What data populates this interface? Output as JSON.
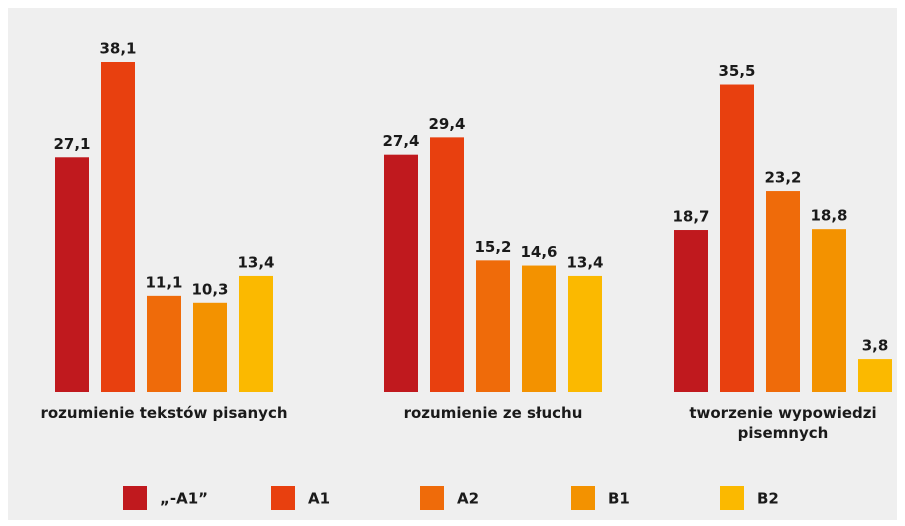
{
  "chart_data": {
    "type": "bar",
    "categories": [
      "rozumienie tekstów pisanych",
      "rozumienie ze słuchu",
      "tworzenie wypowiedzi pisemnych"
    ],
    "series": [
      {
        "name": "„-A1”",
        "color": "#c0191e",
        "values": [
          27.1,
          27.4,
          18.7
        ],
        "value_labels": [
          "27,1",
          "27,4",
          "18,7"
        ]
      },
      {
        "name": "A1",
        "color": "#e8400f",
        "values": [
          38.1,
          29.4,
          35.5
        ],
        "value_labels": [
          "38,1",
          "29,4",
          "35,5"
        ]
      },
      {
        "name": "A2",
        "color": "#ef6b0a",
        "values": [
          11.1,
          15.2,
          23.2
        ],
        "value_labels": [
          "11,1",
          "15,2",
          "23,2"
        ]
      },
      {
        "name": "B1",
        "color": "#f39200",
        "values": [
          10.3,
          14.6,
          18.8
        ],
        "value_labels": [
          "10,3",
          "14,6",
          "18,8"
        ]
      },
      {
        "name": "B2",
        "color": "#fbb900",
        "values": [
          13.4,
          13.4,
          3.8
        ],
        "value_labels": [
          "13,4",
          "13,4",
          "3,8"
        ]
      }
    ]
  }
}
